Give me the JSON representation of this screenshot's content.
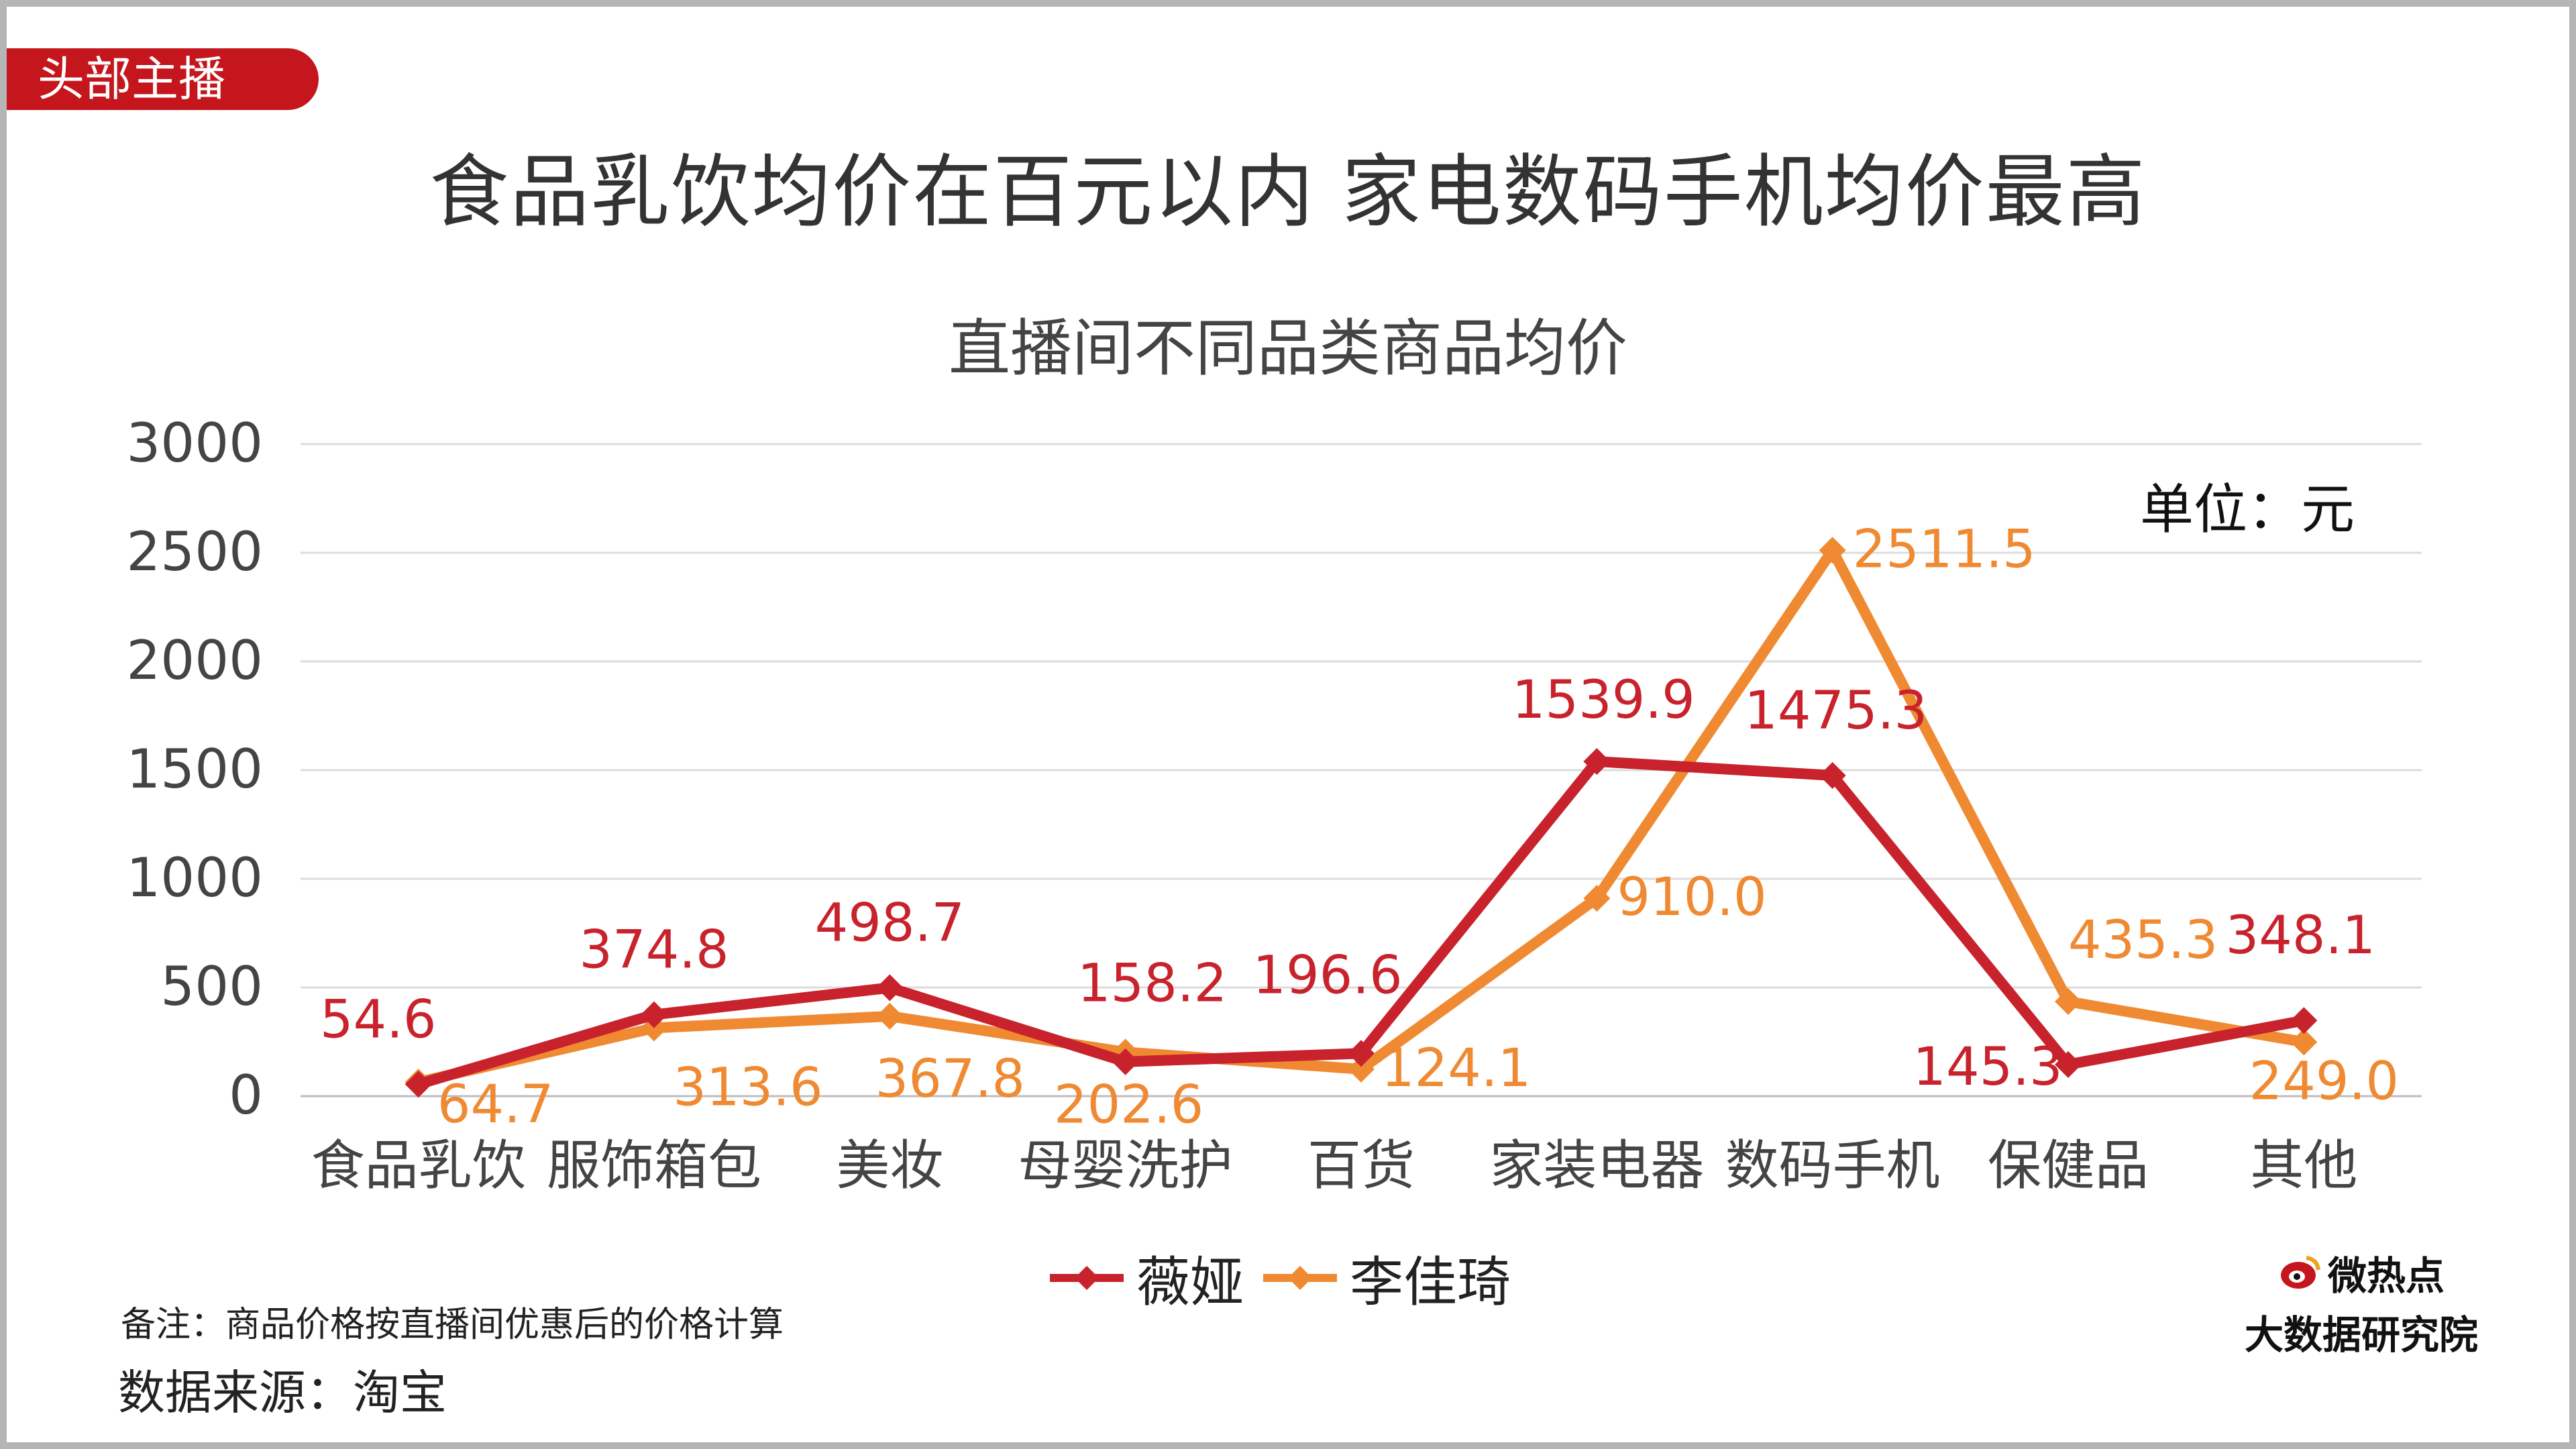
{
  "tag": "头部主播",
  "headline": "食品乳饮均价在百元以内 家电数码手机均价最高",
  "note": "备注：商品价格按直播间优惠后的价格计算",
  "source": "数据来源：淘宝",
  "brand": {
    "top": "微热点",
    "bottom": "大数据研究院"
  },
  "colors": {
    "series1": "#c8232c",
    "series2": "#ef8a33",
    "tag": "#c4161c"
  },
  "chart_data": {
    "type": "line",
    "title": "直播间不同品类商品均价",
    "unit_label": "单位：元",
    "categories": [
      "食品乳饮",
      "服饰箱包",
      "美妆",
      "母婴洗护",
      "百货",
      "家装电器",
      "数码手机",
      "保健品",
      "其他"
    ],
    "ylim": [
      0,
      3000
    ],
    "yticks": [
      0,
      500,
      1000,
      1500,
      2000,
      2500,
      3000
    ],
    "grid": true,
    "legend_position": "bottom",
    "series": [
      {
        "name": "薇娅",
        "values": [
          54.6,
          374.8,
          498.7,
          158.2,
          196.6,
          1539.9,
          1475.3,
          145.3,
          348.1
        ],
        "labels": [
          "54.6",
          "374.8",
          "498.7",
          "158.2",
          "196.6",
          "1539.9",
          "1475.3",
          "145.3",
          "348.1"
        ]
      },
      {
        "name": "李佳琦",
        "values": [
          64.7,
          313.6,
          367.8,
          202.6,
          124.1,
          910.0,
          2511.5,
          435.3,
          249.0
        ],
        "labels": [
          "64.7",
          "313.6",
          "367.8",
          "202.6",
          "124.1",
          "910.0",
          "2511.5",
          "435.3",
          "249.0"
        ]
      }
    ]
  }
}
